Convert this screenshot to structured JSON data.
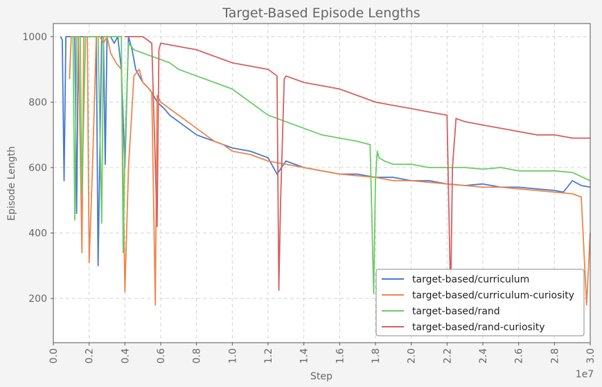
{
  "chart_data": {
    "type": "line",
    "title": "Target-Based Episode Lengths",
    "xlabel": "Step",
    "ylabel": "Episode Length",
    "x_offset_text": "1e7",
    "xlim": [
      0.0,
      3.0
    ],
    "ylim": [
      65,
      1040
    ],
    "grid": true,
    "legend_position": "bottom-right",
    "x_ticks": [
      "0.0",
      "0.2",
      "0.4",
      "0.6",
      "0.8",
      "1.0",
      "1.2",
      "1.4",
      "1.6",
      "1.8",
      "2.0",
      "2.2",
      "2.4",
      "2.6",
      "2.8",
      "3.0"
    ],
    "y_ticks": [
      "200",
      "400",
      "600",
      "800",
      "1000"
    ],
    "series": [
      {
        "name": "target-based/curriculum",
        "color": "#4878cf",
        "x": [
          0.04,
          0.05,
          0.06,
          0.07,
          0.08,
          0.1,
          0.12,
          0.13,
          0.14,
          0.16,
          0.18,
          0.2,
          0.22,
          0.24,
          0.25,
          0.27,
          0.28,
          0.29,
          0.3,
          0.32,
          0.34,
          0.36,
          0.38,
          0.4,
          0.42,
          0.44,
          0.46,
          0.48,
          0.5,
          0.52,
          0.55,
          0.58,
          0.6,
          0.62,
          0.65,
          0.7,
          0.75,
          0.8,
          0.85,
          0.9,
          0.95,
          1.0,
          1.1,
          1.2,
          1.25,
          1.3,
          1.4,
          1.5,
          1.6,
          1.7,
          1.8,
          1.9,
          2.0,
          2.1,
          2.2,
          2.3,
          2.4,
          2.5,
          2.6,
          2.7,
          2.8,
          2.85,
          2.9,
          2.95,
          3.0
        ],
        "values": [
          1000,
          990,
          560,
          1000,
          1000,
          1000,
          1000,
          460,
          1000,
          1000,
          1000,
          1000,
          1000,
          1000,
          300,
          1000,
          1000,
          610,
          1000,
          1000,
          980,
          1000,
          900,
          600,
          1000,
          960,
          900,
          880,
          860,
          850,
          830,
          800,
          790,
          780,
          760,
          740,
          720,
          700,
          690,
          680,
          670,
          660,
          650,
          630,
          580,
          620,
          600,
          590,
          580,
          580,
          570,
          570,
          560,
          560,
          550,
          545,
          550,
          540,
          540,
          535,
          530,
          525,
          560,
          545,
          540
        ]
      },
      {
        "name": "target-based/curriculum-curiosity",
        "color": "#ee854a",
        "x": [
          0.09,
          0.1,
          0.12,
          0.14,
          0.16,
          0.17,
          0.19,
          0.2,
          0.22,
          0.24,
          0.26,
          0.28,
          0.3,
          0.32,
          0.35,
          0.38,
          0.4,
          0.42,
          0.45,
          0.48,
          0.5,
          0.52,
          0.55,
          0.57,
          0.58,
          0.6,
          0.65,
          0.7,
          0.75,
          0.8,
          0.85,
          0.9,
          0.95,
          1.0,
          1.1,
          1.2,
          1.3,
          1.4,
          1.5,
          1.6,
          1.7,
          1.8,
          1.9,
          2.0,
          2.1,
          2.2,
          2.3,
          2.4,
          2.5,
          2.6,
          2.7,
          2.8,
          2.9,
          2.95,
          2.98,
          3.0
        ],
        "values": [
          870,
          1000,
          1000,
          1000,
          340,
          1000,
          1000,
          310,
          620,
          1000,
          1000,
          980,
          1000,
          950,
          920,
          900,
          220,
          600,
          880,
          900,
          860,
          850,
          830,
          180,
          820,
          800,
          780,
          760,
          740,
          720,
          700,
          680,
          670,
          650,
          640,
          620,
          610,
          600,
          590,
          580,
          575,
          570,
          560,
          560,
          555,
          550,
          545,
          540,
          540,
          535,
          530,
          525,
          520,
          510,
          180,
          400
        ]
      },
      {
        "name": "target-based/rand",
        "color": "#6acc64",
        "x": [
          0.1,
          0.11,
          0.12,
          0.13,
          0.15,
          0.16,
          0.18,
          0.2,
          0.22,
          0.25,
          0.27,
          0.28,
          0.3,
          0.32,
          0.35,
          0.38,
          0.39,
          0.4,
          0.42,
          0.45,
          0.5,
          0.55,
          0.6,
          0.65,
          0.7,
          0.8,
          0.9,
          1.0,
          1.1,
          1.2,
          1.3,
          1.4,
          1.5,
          1.6,
          1.7,
          1.77,
          1.79,
          1.8,
          1.81,
          1.82,
          1.85,
          1.9,
          2.0,
          2.1,
          2.2,
          2.3,
          2.4,
          2.5,
          2.6,
          2.7,
          2.8,
          2.9,
          3.0
        ],
        "values": [
          1000,
          1000,
          440,
          1000,
          1000,
          520,
          1000,
          1000,
          1000,
          1000,
          430,
          1000,
          1000,
          1000,
          1000,
          1000,
          340,
          650,
          980,
          960,
          950,
          940,
          930,
          920,
          900,
          880,
          860,
          840,
          800,
          760,
          740,
          720,
          700,
          690,
          680,
          670,
          215,
          560,
          650,
          630,
          620,
          610,
          610,
          600,
          600,
          600,
          595,
          600,
          590,
          590,
          590,
          585,
          560
        ]
      },
      {
        "name": "target-based/rand-curiosity",
        "color": "#d65f5f",
        "x": [
          0.4,
          0.45,
          0.5,
          0.55,
          0.58,
          0.59,
          0.6,
          0.65,
          0.7,
          0.75,
          0.8,
          0.85,
          0.9,
          0.95,
          1.0,
          1.1,
          1.2,
          1.25,
          1.26,
          1.27,
          1.29,
          1.3,
          1.4,
          1.5,
          1.6,
          1.7,
          1.8,
          1.9,
          2.0,
          2.1,
          2.2,
          2.22,
          2.23,
          2.25,
          2.3,
          2.4,
          2.5,
          2.6,
          2.7,
          2.8,
          2.9,
          3.0
        ],
        "values": [
          1000,
          1000,
          1000,
          980,
          420,
          960,
          980,
          975,
          970,
          965,
          960,
          950,
          940,
          930,
          920,
          910,
          900,
          880,
          225,
          500,
          870,
          880,
          860,
          850,
          840,
          820,
          800,
          790,
          780,
          770,
          760,
          200,
          600,
          750,
          740,
          730,
          720,
          710,
          700,
          700,
          690,
          690
        ]
      }
    ]
  }
}
